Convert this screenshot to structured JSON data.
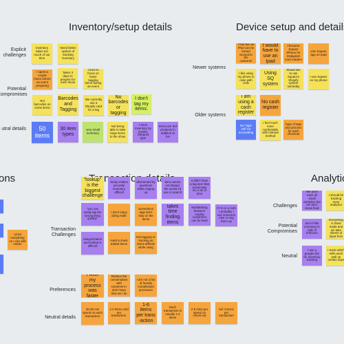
{
  "headings": {
    "inventory": "Inventory/setup details",
    "device": "Device setup and details",
    "cutoff_left": "ons",
    "transaction": "Transaction details",
    "analytics": "Analytics"
  },
  "inventory_labels": {
    "explicit": "Explicit challenges",
    "potential": "Potential compromises",
    "neutral": "utral details"
  },
  "inventory_notes": [
    "Inventory takes too much of our time",
    "Need better system of tracking inventory",
    "Sometimes tagging is hard",
    "I spent a couple hours before an event preparing",
    "Takes 3 days to prepare for each show",
    "I tried to focus on fewer tagging items during an event",
    "Not barcodes on some items",
    "Barcodes and Tagging",
    "We currently use a Shopify card for a tag",
    "No barcodes or tagging",
    "I don't tag my items.",
    "50 items",
    "30 item types",
    "very small inventory",
    "Not being able to take large items to the show",
    "I track inventory by jewelry category type",
    "Items are 3rd products in addition to fun"
  ],
  "device_labels": {
    "newer": "Newer systems",
    "older": "Older systems"
  },
  "device_notes": [
    "I feel like an iPad can be turned around to the customer",
    "I would have to use an Ipad",
    "I became Square iPhone for Instagram card readers",
    "Use Square app on Ipad",
    "I like using my phone in case with cells",
    "Using SQ system",
    "Would like to use Square's Shopify system someday",
    "I use Square on my phone",
    "I am using a cash register",
    "No cash register",
    "No \"tape roll\" for accounting",
    "I feel much more comfortable with manual method",
    "Type of tape and process for each checkout"
  ],
  "left_edge_notes": [
    "I price everything so I can add easier"
  ],
  "transaction_labels": {
    "challenges": "Transaction Challenges",
    "preferences": "Preferences",
    "neutral": "Neutral details"
  },
  "transaction_notes": [
    "\"lookup\" is the biggest challenge",
    "Setup makes accurate inventory difficult",
    "disoriented by questions while ringing up",
    "Item names not always the words I'd use to search",
    "It didn't have a tag item that would take me a lot of time",
    "\"you can easily tap the wrong thing quickly\"",
    "I don't enjoy doing math",
    "Sometimes tags don't stay on the items",
    "takes time finding items",
    "Multitasking between ringing customers can be hard",
    "If I'm in a rush I probably I use someone else to ring them up",
    "categorization and lookup is difficult",
    "Hard to track traded items",
    "Not tagging or tracking as items difficult while using",
    "I wish my process was faster",
    "Reduce the conversation with customers I don't have time as I do",
    "I am not a fan of heavily complicated processes",
    "20-45 min spend on each transaction",
    "1-2 items sold per transaction.",
    "1-6 items per trans -action",
    "Each transaction is usually 1-2 items",
    "2-5 mins per spend on check-out",
    "5of 4 items per transaction"
  ],
  "analytics_labels": {
    "challenges": "Challenges",
    "potential": "Potential Compromises",
    "neutral": "Neutral"
  },
  "analytics_notes": [
    "We don't track all small analytics but we don't know food",
    "I should be tracking more analytics",
    "and of like inventory is tally of leftovers",
    "Everything is hand made and we take sheets of input from",
    "I use a google doc for inventory tracking",
    "I track which sells each well on certain days"
  ]
}
